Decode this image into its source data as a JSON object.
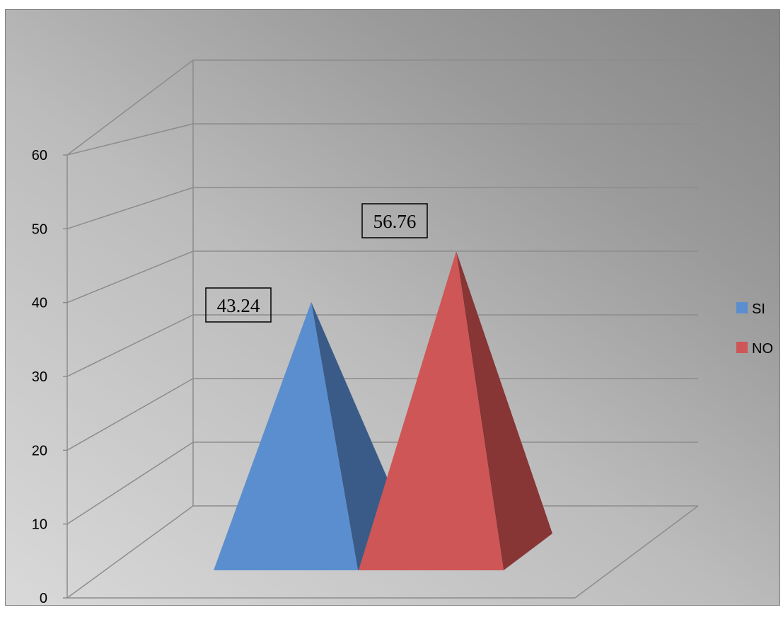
{
  "chart_data": {
    "type": "bar",
    "style": "3d-pyramid",
    "categories": [
      ""
    ],
    "series": [
      {
        "name": "SI",
        "values": [
          43.24
        ],
        "color": "#5B8ECF",
        "side_color": "#3A5B88"
      },
      {
        "name": "NO",
        "values": [
          56.76
        ],
        "color": "#CF5656",
        "side_color": "#873535"
      }
    ],
    "data_labels": [
      "43.24",
      "56.76"
    ],
    "ylim": [
      0,
      60
    ],
    "y_ticks": [
      "0",
      "10",
      "20",
      "30",
      "40",
      "50",
      "60"
    ],
    "grid": true,
    "legend_position": "right",
    "title": "",
    "xlabel": "",
    "ylabel": ""
  },
  "colors": {
    "gridline": "#8c8c8c",
    "frame_border": "#7f7f7f"
  }
}
